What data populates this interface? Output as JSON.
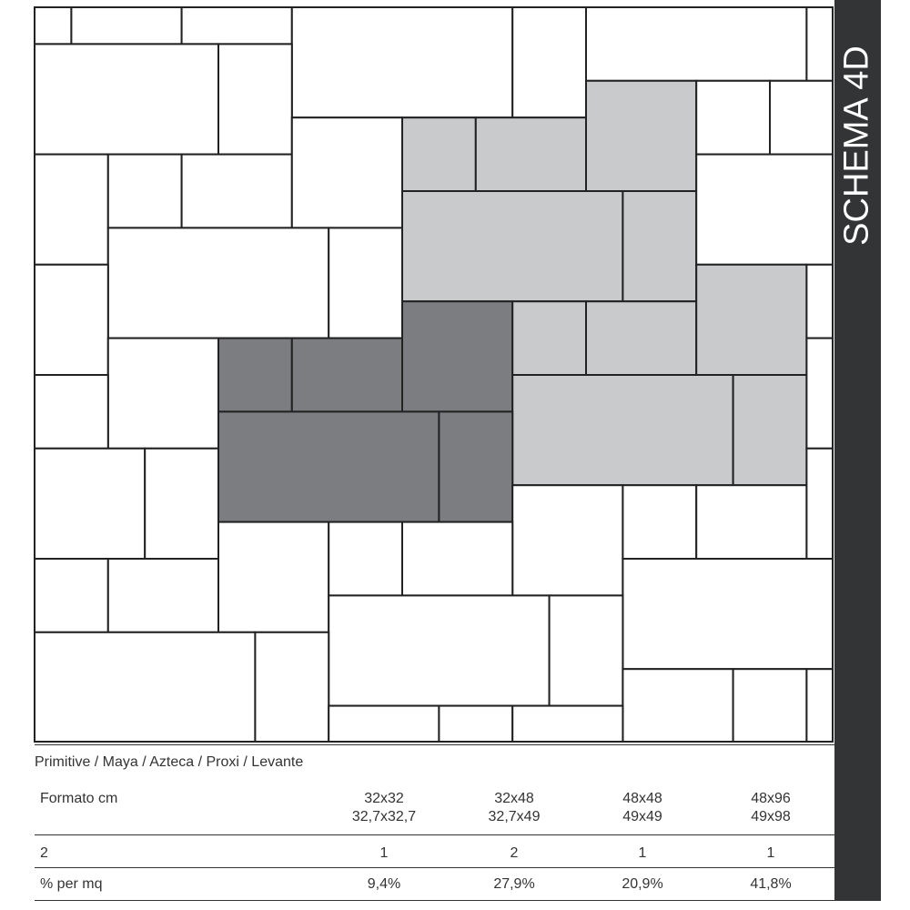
{
  "title": "SCHEMA 4D",
  "caption": "Primitive / Maya / Azteca / Proxi / Levante",
  "table": {
    "header": {
      "label": "Formato cm",
      "cells": [
        [
          "32x32",
          "32,7x32,7"
        ],
        [
          "32x48",
          "32,7x49"
        ],
        [
          "48x48",
          "49x49"
        ],
        [
          "48x96",
          "49x98"
        ]
      ]
    },
    "rows": [
      {
        "label": "2",
        "cells": [
          "1",
          "2",
          "1",
          "1"
        ]
      },
      {
        "label": "% per mq",
        "cells": [
          "9,4%",
          "27,9%",
          "20,9%",
          "41,8%"
        ]
      }
    ]
  }
}
